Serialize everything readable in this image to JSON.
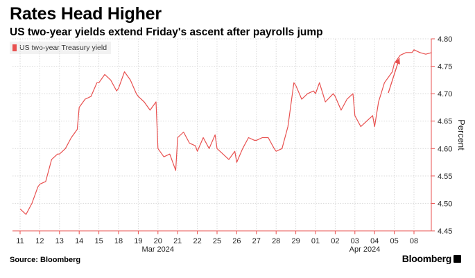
{
  "header": {
    "title": "Rates Head Higher",
    "subtitle": "US two-year yields extend Friday's ascent after payrolls jump"
  },
  "footer": {
    "source": "Source: Bloomberg",
    "brand": "Bloomberg"
  },
  "colors": {
    "series": "#e8504f",
    "grid": "#d9d9d9",
    "axis": "#e8504f"
  },
  "chart_data": {
    "type": "line",
    "title": "Rates Head Higher",
    "subtitle": "US two-year yields extend Friday's ascent after payrolls jump",
    "ylabel": "Percent",
    "ylim": [
      4.45,
      4.8
    ],
    "yticks": [
      4.45,
      4.5,
      4.55,
      4.6,
      4.65,
      4.7,
      4.75,
      4.8
    ],
    "ytick_labels": [
      "4.45",
      "4.50",
      "4.55",
      "4.60",
      "4.65",
      "4.70",
      "4.75",
      "4.80"
    ],
    "grid": true,
    "legend_position": "top-left",
    "y_axis_side": "right",
    "xtick_labels": [
      "11",
      "12",
      "13",
      "14",
      "15",
      "18",
      "19",
      "20",
      "21",
      "22",
      "25",
      "26",
      "27",
      "28",
      "29",
      "01",
      "02",
      "03",
      "04",
      "05",
      "08"
    ],
    "month_labels": [
      {
        "label": "Mar 2024",
        "at_tick": 7
      },
      {
        "label": "Apr 2024",
        "at_tick": 17.5
      }
    ],
    "annotation": "up-arrow",
    "series": [
      {
        "name": "US two-year Treasury yield",
        "x": [
          0,
          0.3,
          0.6,
          0.9,
          1.0,
          1.3,
          1.6,
          1.9,
          2.0,
          2.3,
          2.6,
          2.9,
          3.0,
          3.3,
          3.6,
          3.9,
          4.0,
          4.3,
          4.6,
          4.9,
          5.0,
          5.3,
          5.6,
          5.9,
          6.0,
          6.3,
          6.6,
          6.9,
          7.0,
          7.3,
          7.6,
          7.9,
          8.0,
          8.3,
          8.6,
          8.9,
          9.0,
          9.3,
          9.6,
          9.9,
          10.0,
          10.3,
          10.6,
          10.9,
          11.0,
          11.3,
          11.6,
          11.9,
          12.0,
          12.3,
          12.6,
          12.9,
          13.0,
          13.3,
          13.6,
          13.9,
          14.0,
          14.3,
          14.6,
          14.9,
          15.0,
          15.2,
          15.5,
          15.9,
          16.0,
          16.3,
          16.6,
          16.9,
          17.0,
          17.3,
          17.6,
          17.9,
          18.0,
          18.2,
          18.5,
          18.9,
          19.0,
          19.3,
          19.6,
          19.9,
          20.0,
          20.3,
          20.6,
          20.9
        ],
        "y": [
          4.49,
          4.48,
          4.5,
          4.53,
          4.535,
          4.54,
          4.58,
          4.59,
          4.59,
          4.6,
          4.62,
          4.635,
          4.675,
          4.69,
          4.695,
          4.72,
          4.72,
          4.735,
          4.725,
          4.705,
          4.71,
          4.74,
          4.725,
          4.7,
          4.695,
          4.685,
          4.67,
          4.685,
          4.6,
          4.585,
          4.59,
          4.56,
          4.62,
          4.63,
          4.61,
          4.605,
          4.595,
          4.62,
          4.6,
          4.625,
          4.6,
          4.59,
          4.58,
          4.595,
          4.575,
          4.6,
          4.62,
          4.615,
          4.615,
          4.62,
          4.62,
          4.6,
          4.595,
          4.6,
          4.64,
          4.72,
          4.715,
          4.69,
          4.7,
          4.705,
          4.7,
          4.72,
          4.685,
          4.7,
          4.695,
          4.67,
          4.69,
          4.7,
          4.66,
          4.64,
          4.65,
          4.66,
          4.64,
          4.685,
          4.72,
          4.74,
          4.755,
          4.77,
          4.775,
          4.775,
          4.78,
          4.775,
          4.772,
          4.775
        ]
      }
    ]
  }
}
